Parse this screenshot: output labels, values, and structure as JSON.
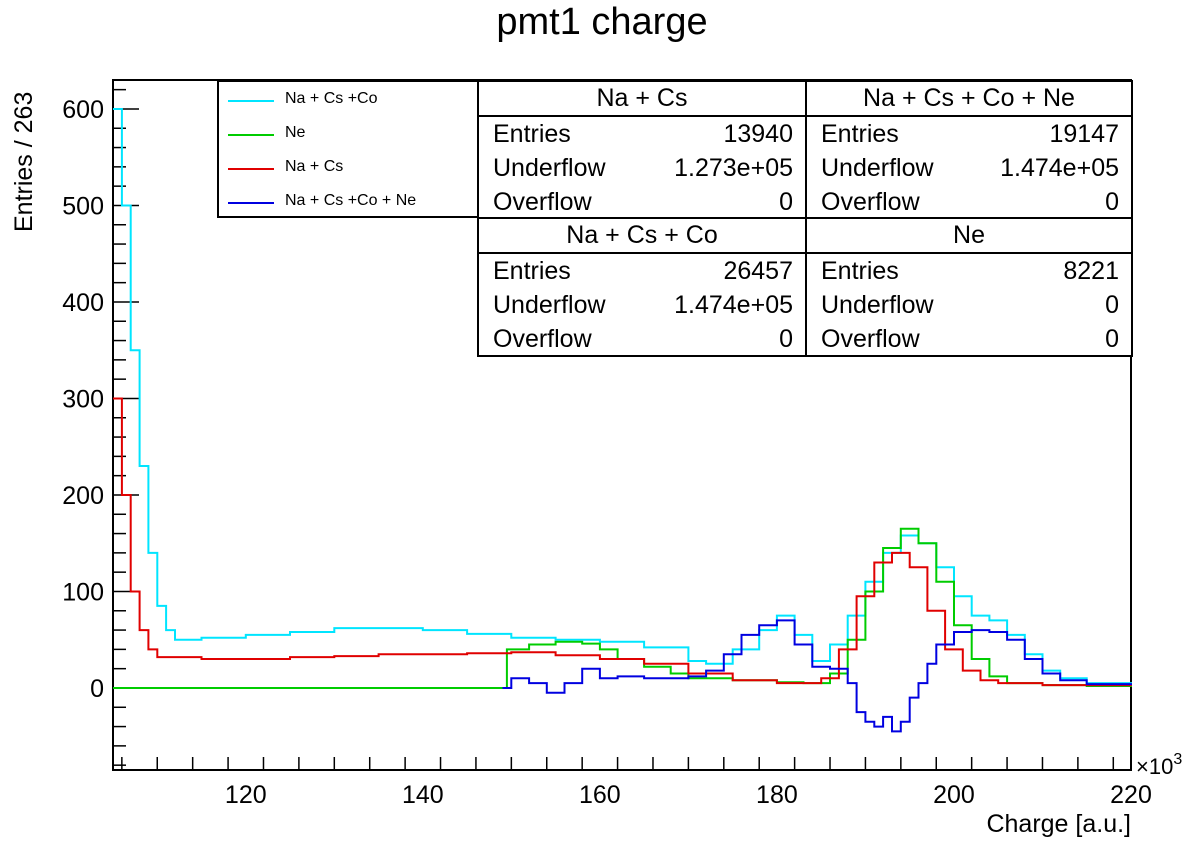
{
  "chart_data": {
    "type": "line",
    "title": "pmt1 charge",
    "xlabel": "Charge [a.u.]",
    "ylabel": "Entries / 263",
    "x_multiplier": "×10",
    "x_multiplier_exp": "3",
    "xlim": [
      105,
      220
    ],
    "ylim": [
      -85,
      630
    ],
    "xticks": [
      120,
      140,
      160,
      180,
      200,
      220
    ],
    "yticks": [
      0,
      100,
      200,
      300,
      400,
      500,
      600
    ],
    "grid": false,
    "legend_placement": "top-left",
    "series": [
      {
        "name": "Na + Cs +Co",
        "color": "#00e5ff",
        "points": [
          [
            105,
            600
          ],
          [
            106,
            500
          ],
          [
            107,
            350
          ],
          [
            108,
            230
          ],
          [
            109,
            140
          ],
          [
            110,
            85
          ],
          [
            111,
            60
          ],
          [
            112,
            50
          ],
          [
            115,
            52
          ],
          [
            120,
            55
          ],
          [
            125,
            58
          ],
          [
            130,
            62
          ],
          [
            135,
            62
          ],
          [
            140,
            60
          ],
          [
            145,
            56
          ],
          [
            150,
            52
          ],
          [
            155,
            50
          ],
          [
            160,
            48
          ],
          [
            165,
            42
          ],
          [
            170,
            28
          ],
          [
            172,
            25
          ],
          [
            175,
            40
          ],
          [
            178,
            60
          ],
          [
            180,
            75
          ],
          [
            182,
            55
          ],
          [
            184,
            28
          ],
          [
            186,
            45
          ],
          [
            188,
            75
          ],
          [
            190,
            110
          ],
          [
            192,
            140
          ],
          [
            194,
            158
          ],
          [
            196,
            150
          ],
          [
            198,
            125
          ],
          [
            200,
            95
          ],
          [
            202,
            75
          ],
          [
            204,
            70
          ],
          [
            206,
            55
          ],
          [
            208,
            35
          ],
          [
            210,
            18
          ],
          [
            212,
            10
          ],
          [
            215,
            5
          ],
          [
            220,
            3
          ]
        ]
      },
      {
        "name": "Ne",
        "color": "#00cc00",
        "points": [
          [
            105,
            0
          ],
          [
            149,
            0
          ],
          [
            149.5,
            40
          ],
          [
            152,
            45
          ],
          [
            155,
            48
          ],
          [
            158,
            46
          ],
          [
            160,
            40
          ],
          [
            162,
            30
          ],
          [
            165,
            22
          ],
          [
            168,
            15
          ],
          [
            170,
            10
          ],
          [
            175,
            8
          ],
          [
            180,
            6
          ],
          [
            183,
            5
          ],
          [
            186,
            15
          ],
          [
            188,
            50
          ],
          [
            190,
            100
          ],
          [
            192,
            145
          ],
          [
            194,
            165
          ],
          [
            196,
            150
          ],
          [
            198,
            110
          ],
          [
            200,
            65
          ],
          [
            202,
            30
          ],
          [
            204,
            12
          ],
          [
            206,
            5
          ],
          [
            210,
            3
          ],
          [
            215,
            2
          ],
          [
            220,
            1
          ]
        ]
      },
      {
        "name": "Na + Cs",
        "color": "#e00000",
        "points": [
          [
            105,
            300
          ],
          [
            106,
            200
          ],
          [
            107,
            100
          ],
          [
            108,
            60
          ],
          [
            109,
            40
          ],
          [
            110,
            32
          ],
          [
            115,
            30
          ],
          [
            120,
            30
          ],
          [
            125,
            32
          ],
          [
            130,
            33
          ],
          [
            135,
            35
          ],
          [
            140,
            35
          ],
          [
            145,
            36
          ],
          [
            150,
            37
          ],
          [
            155,
            34
          ],
          [
            160,
            30
          ],
          [
            165,
            25
          ],
          [
            170,
            15
          ],
          [
            175,
            8
          ],
          [
            180,
            5
          ],
          [
            185,
            10
          ],
          [
            187,
            40
          ],
          [
            189,
            95
          ],
          [
            191,
            130
          ],
          [
            193,
            140
          ],
          [
            195,
            125
          ],
          [
            197,
            80
          ],
          [
            199,
            40
          ],
          [
            201,
            18
          ],
          [
            203,
            8
          ],
          [
            205,
            5
          ],
          [
            210,
            3
          ],
          [
            220,
            2
          ]
        ]
      },
      {
        "name": "Na + Cs +Co + Ne",
        "color": "#0000e0",
        "points": [
          [
            149,
            0
          ],
          [
            150,
            10
          ],
          [
            152,
            5
          ],
          [
            154,
            -5
          ],
          [
            156,
            5
          ],
          [
            158,
            20
          ],
          [
            160,
            10
          ],
          [
            162,
            12
          ],
          [
            165,
            10
          ],
          [
            168,
            10
          ],
          [
            170,
            12
          ],
          [
            172,
            18
          ],
          [
            174,
            35
          ],
          [
            176,
            55
          ],
          [
            178,
            65
          ],
          [
            180,
            70
          ],
          [
            182,
            45
          ],
          [
            184,
            22
          ],
          [
            186,
            20
          ],
          [
            188,
            5
          ],
          [
            189,
            -25
          ],
          [
            190,
            -35
          ],
          [
            191,
            -40
          ],
          [
            192,
            -30
          ],
          [
            193,
            -45
          ],
          [
            194,
            -35
          ],
          [
            195,
            -10
          ],
          [
            196,
            5
          ],
          [
            197,
            25
          ],
          [
            198,
            45
          ],
          [
            200,
            58
          ],
          [
            202,
            60
          ],
          [
            204,
            58
          ],
          [
            206,
            50
          ],
          [
            208,
            30
          ],
          [
            210,
            15
          ],
          [
            212,
            8
          ],
          [
            215,
            4
          ],
          [
            220,
            3
          ]
        ]
      }
    ]
  },
  "legend": {
    "items": [
      {
        "label": "Na + Cs +Co",
        "color": "#00e5ff"
      },
      {
        "label": "Ne",
        "color": "#00cc00"
      },
      {
        "label": "Na + Cs",
        "color": "#e00000"
      },
      {
        "label": "Na + Cs +Co + Ne",
        "color": "#0000e0"
      }
    ]
  },
  "stats": [
    {
      "title": "Na + Cs",
      "entries_label": "Entries",
      "entries": "13940",
      "underflow_label": "Underflow",
      "underflow": "1.273e+05",
      "overflow_label": "Overflow",
      "overflow": "0"
    },
    {
      "title": "Na + Cs + Co + Ne",
      "entries_label": "Entries",
      "entries": "19147",
      "underflow_label": "Underflow",
      "underflow": "1.474e+05",
      "overflow_label": "Overflow",
      "overflow": "0"
    },
    {
      "title": "Na + Cs + Co",
      "entries_label": "Entries",
      "entries": "26457",
      "underflow_label": "Underflow",
      "underflow": "1.474e+05",
      "overflow_label": "Overflow",
      "overflow": "0"
    },
    {
      "title": "Ne",
      "entries_label": "Entries",
      "entries": "8221",
      "underflow_label": "Underflow",
      "underflow": "0",
      "overflow_label": "Overflow",
      "overflow": "0"
    }
  ]
}
